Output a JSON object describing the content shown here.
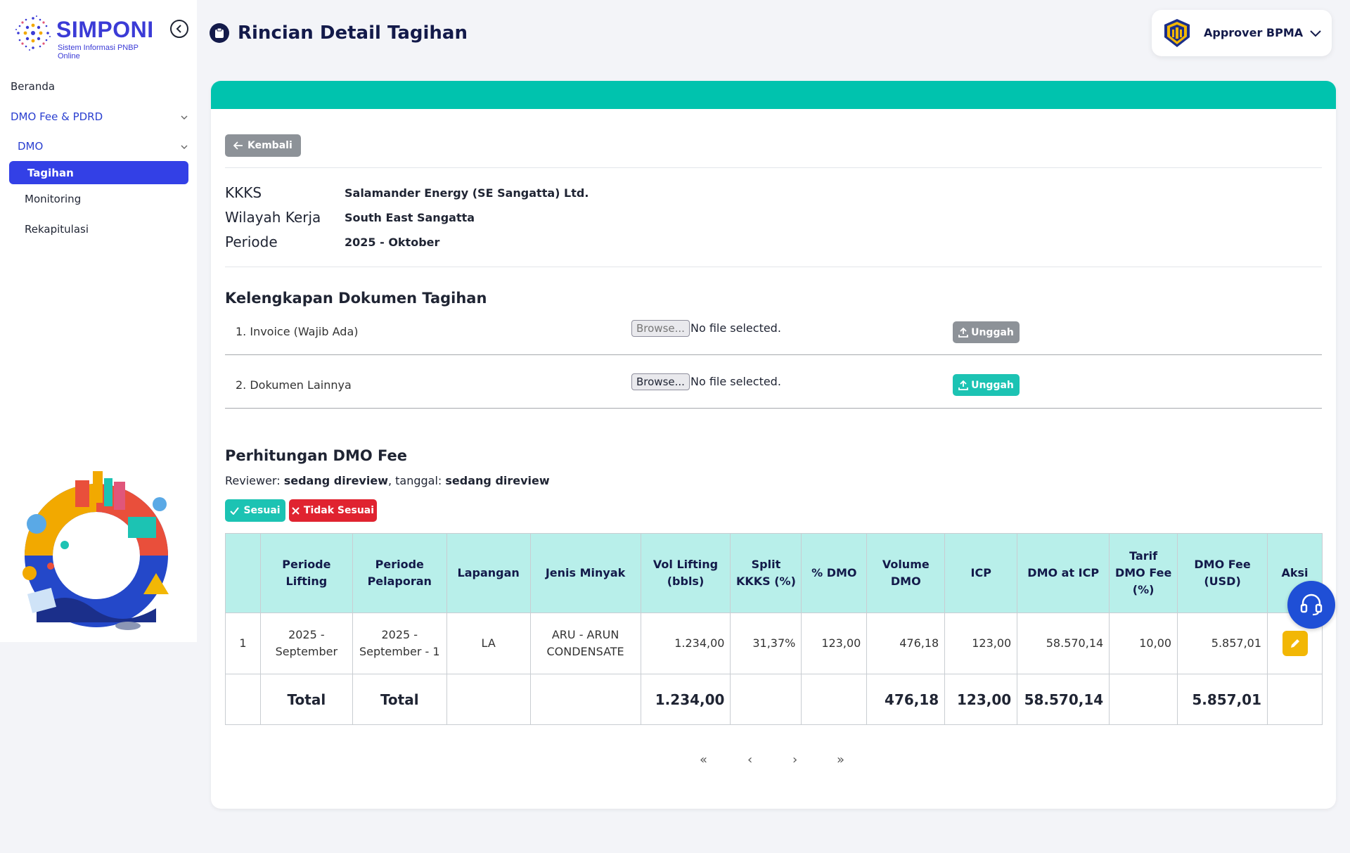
{
  "brand": {
    "name": "SIMPONI",
    "subtitle": "Sistem Informasi PNBP Online"
  },
  "sidebar": {
    "items": [
      {
        "label": "Beranda"
      },
      {
        "label": "DMO Fee & PDRD"
      },
      {
        "label": "DMO"
      },
      {
        "label": "Tagihan"
      },
      {
        "label": "Monitoring"
      },
      {
        "label": "Rekapitulasi"
      }
    ]
  },
  "header": {
    "title": "Rincian Detail Tagihan",
    "user": "Approver BPMA"
  },
  "actions": {
    "back": "Kembali"
  },
  "info": {
    "kkks_label": "KKKS",
    "kkks_value": "Salamander Energy (SE Sangatta) Ltd.",
    "wilayah_label": "Wilayah Kerja",
    "wilayah_value": "South East Sangatta",
    "periode_label": "Periode",
    "periode_value": "2025 - Oktober"
  },
  "documents": {
    "title": "Kelengkapan Dokumen Tagihan",
    "items": [
      {
        "label": "1. Invoice (Wajib Ada)",
        "browse": "Browse...",
        "file": "No file selected.",
        "upload": "Unggah"
      },
      {
        "label": "2. Dokumen Lainnya",
        "browse": "Browse...",
        "file": "No file selected.",
        "upload": "Unggah"
      }
    ]
  },
  "calc": {
    "title": "Perhitungan DMO Fee",
    "reviewer_label": "Reviewer: ",
    "reviewer_value": "sedang direview",
    "tanggal_label": ", tanggal: ",
    "tanggal_value": "sedang direview",
    "sesuai": "Sesuai",
    "tidak_sesuai": "Tidak Sesuai"
  },
  "table": {
    "headers": [
      "",
      "Periode Lifting",
      "Periode Pelaporan",
      "Lapangan",
      "Jenis Minyak",
      "Vol Lifting (bbls)",
      "Split KKKS (%)",
      "% DMO",
      "Volume DMO",
      "ICP",
      "DMO at ICP",
      "Tarif DMO Fee (%)",
      "DMO Fee (USD)",
      "Aksi"
    ],
    "rows": [
      [
        "1",
        "2025 - September",
        "2025 - September - 1",
        "LA",
        "ARU - ARUN CONDENSATE",
        "1.234,00",
        "31,37%",
        "123,00",
        "476,18",
        "123,00",
        "58.570,14",
        "10,00",
        "5.857,01"
      ]
    ],
    "total": [
      "",
      "Total",
      "Total",
      "",
      "",
      "1.234,00",
      "",
      "",
      "476,18",
      "123,00",
      "58.570,14",
      "",
      "5.857,01",
      ""
    ]
  },
  "pagination": {
    "first": "«",
    "prev": "‹",
    "next": "›",
    "last": "»"
  },
  "colors": {
    "accent": "#3340e6",
    "teal": "#00c3ae",
    "danger": "#e02330",
    "header_bg": "#b8efea"
  }
}
